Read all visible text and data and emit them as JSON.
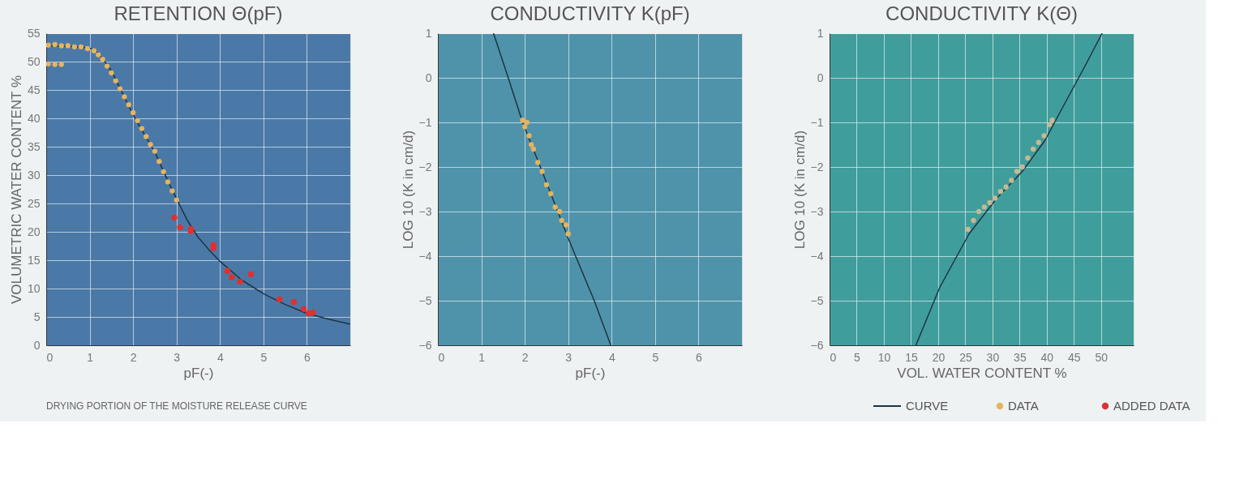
{
  "chart_data": [
    {
      "type": "scatter",
      "title": "RETENTION Θ(pF)",
      "xlabel": "pF(-)",
      "ylabel": "VOLUMETRIC WATER CONTENT %",
      "xlim": [
        0,
        7
      ],
      "xticks": [
        0,
        1,
        2,
        3,
        4,
        5,
        6
      ],
      "ylim": [
        0,
        55
      ],
      "yticks": [
        0,
        5,
        10,
        15,
        20,
        25,
        30,
        35,
        40,
        45,
        50,
        55
      ],
      "grid": true,
      "legend": "bottom right",
      "annotations": [
        "DRYING PORTION OF THE MOISTURE RELEASE CURVE"
      ],
      "series": [
        {
          "name": "CURVE",
          "type": "line",
          "color": "#1e3440",
          "x": [
            0,
            0.5,
            1,
            1.15,
            1.3,
            1.5,
            1.75,
            2,
            2.25,
            2.5,
            2.75,
            3,
            3.25,
            3.5,
            3.75,
            4,
            4.5,
            5,
            5.5,
            6,
            6.5,
            7
          ],
          "values": [
            52.8,
            52.7,
            52.4,
            51.8,
            50.5,
            48.4,
            44.5,
            40.6,
            37.3,
            34.1,
            29.8,
            25.8,
            22.0,
            19.0,
            16.8,
            14.8,
            11.5,
            9.1,
            7.2,
            5.6,
            4.6,
            3.7
          ]
        },
        {
          "name": "DATA",
          "color": "#e6b35e",
          "x": [
            0.05,
            0.2,
            0.35,
            0.5,
            0.65,
            0.8,
            0.95,
            1.1,
            1.2,
            1.3,
            1.4,
            1.5,
            1.6,
            1.7,
            1.8,
            1.9,
            2.0,
            2.1,
            2.2,
            2.3,
            2.4,
            2.5,
            2.6,
            2.7,
            2.8,
            2.9,
            3.0,
            0.05,
            0.2,
            0.35
          ],
          "values": [
            52.9,
            53.0,
            52.8,
            52.8,
            52.6,
            52.6,
            52.3,
            51.9,
            51.2,
            50.4,
            49.2,
            48.0,
            46.6,
            45.2,
            43.8,
            42.4,
            41.0,
            39.6,
            38.2,
            36.8,
            35.4,
            34.2,
            32.4,
            30.6,
            28.8,
            27.2,
            25.6,
            49.6,
            49.5,
            49.5
          ]
        },
        {
          "name": "ADDED DATA",
          "color": "#e03030",
          "x": [
            2.95,
            3.08,
            3.33,
            3.33,
            3.85,
            3.85,
            4.17,
            4.27,
            4.46,
            4.71,
            5.37,
            5.7,
            5.93,
            6.04,
            6.14
          ],
          "values": [
            22.5,
            20.8,
            20.5,
            20.1,
            17.7,
            17.1,
            13.1,
            12.0,
            11.2,
            12.5,
            8.1,
            7.6,
            6.4,
            5.6,
            5.8
          ]
        }
      ]
    },
    {
      "type": "scatter",
      "title": "CONDUCTIVITY  K(pF)",
      "xlabel": "pF(-)",
      "ylabel": "LOG 10 (K in cm/d)",
      "xlim": [
        0,
        7
      ],
      "xticks": [
        0,
        1,
        2,
        3,
        4,
        5,
        6
      ],
      "ylim": [
        -6,
        1
      ],
      "yticks": [
        -6,
        -5,
        -4,
        -3,
        -2,
        -1,
        0,
        1
      ],
      "grid": true,
      "series": [
        {
          "type": "line",
          "color": "#1e3440",
          "x": [
            1.28,
            1.62,
            1.95,
            2.36,
            2.76,
            3.0,
            3.17,
            3.6,
            3.98
          ],
          "values": [
            1,
            0,
            -1,
            -2,
            -3,
            -3.6,
            -4,
            -5,
            -6
          ]
        },
        {
          "color": "#e6b35e",
          "x": [
            1.95,
            2.0,
            2.05,
            2.1,
            2.15,
            2.2,
            2.3,
            2.4,
            2.5,
            2.6,
            2.7,
            2.8,
            2.85,
            2.95,
            3.0
          ],
          "values": [
            -0.95,
            -1.1,
            -1.0,
            -1.3,
            -1.5,
            -1.6,
            -1.9,
            -2.1,
            -2.4,
            -2.6,
            -2.9,
            -3.0,
            -3.2,
            -3.3,
            -3.5
          ]
        }
      ]
    },
    {
      "type": "scatter",
      "title": "CONDUCTIVITY  K(Θ)",
      "xlabel": "VOL. WATER CONTENT %",
      "ylabel": "LOG 10 (K in cm/d)",
      "xlim": [
        0,
        56
      ],
      "xticks": [
        0,
        5,
        10,
        15,
        20,
        25,
        30,
        35,
        40,
        45,
        50
      ],
      "ylim": [
        -6,
        1
      ],
      "yticks": [
        -6,
        -5,
        -4,
        -3,
        -2,
        -1,
        0,
        1
      ],
      "grid": true,
      "series": [
        {
          "type": "line",
          "color": "#1e3440",
          "x": [
            15.9,
            20.3,
            25.7,
            30.8,
            35.5,
            39.7,
            42.1,
            47.2,
            50.2
          ],
          "values": [
            -6,
            -4.7,
            -3.5,
            -2.7,
            -2.1,
            -1.4,
            -0.85,
            0.3,
            1
          ]
        },
        {
          "color": "#c5b894",
          "x": [
            25.5,
            26.5,
            27.5,
            28.5,
            29.5,
            30.5,
            31.5,
            32.5,
            33.5,
            34.5,
            35.5,
            36.5,
            37.5,
            38.5,
            39.5,
            40.5,
            41
          ],
          "values": [
            -3.4,
            -3.2,
            -3.0,
            -2.9,
            -2.8,
            -2.7,
            -2.55,
            -2.45,
            -2.3,
            -2.1,
            -2.0,
            -1.8,
            -1.6,
            -1.45,
            -1.3,
            -1.05,
            -0.95
          ]
        }
      ]
    }
  ]
}
